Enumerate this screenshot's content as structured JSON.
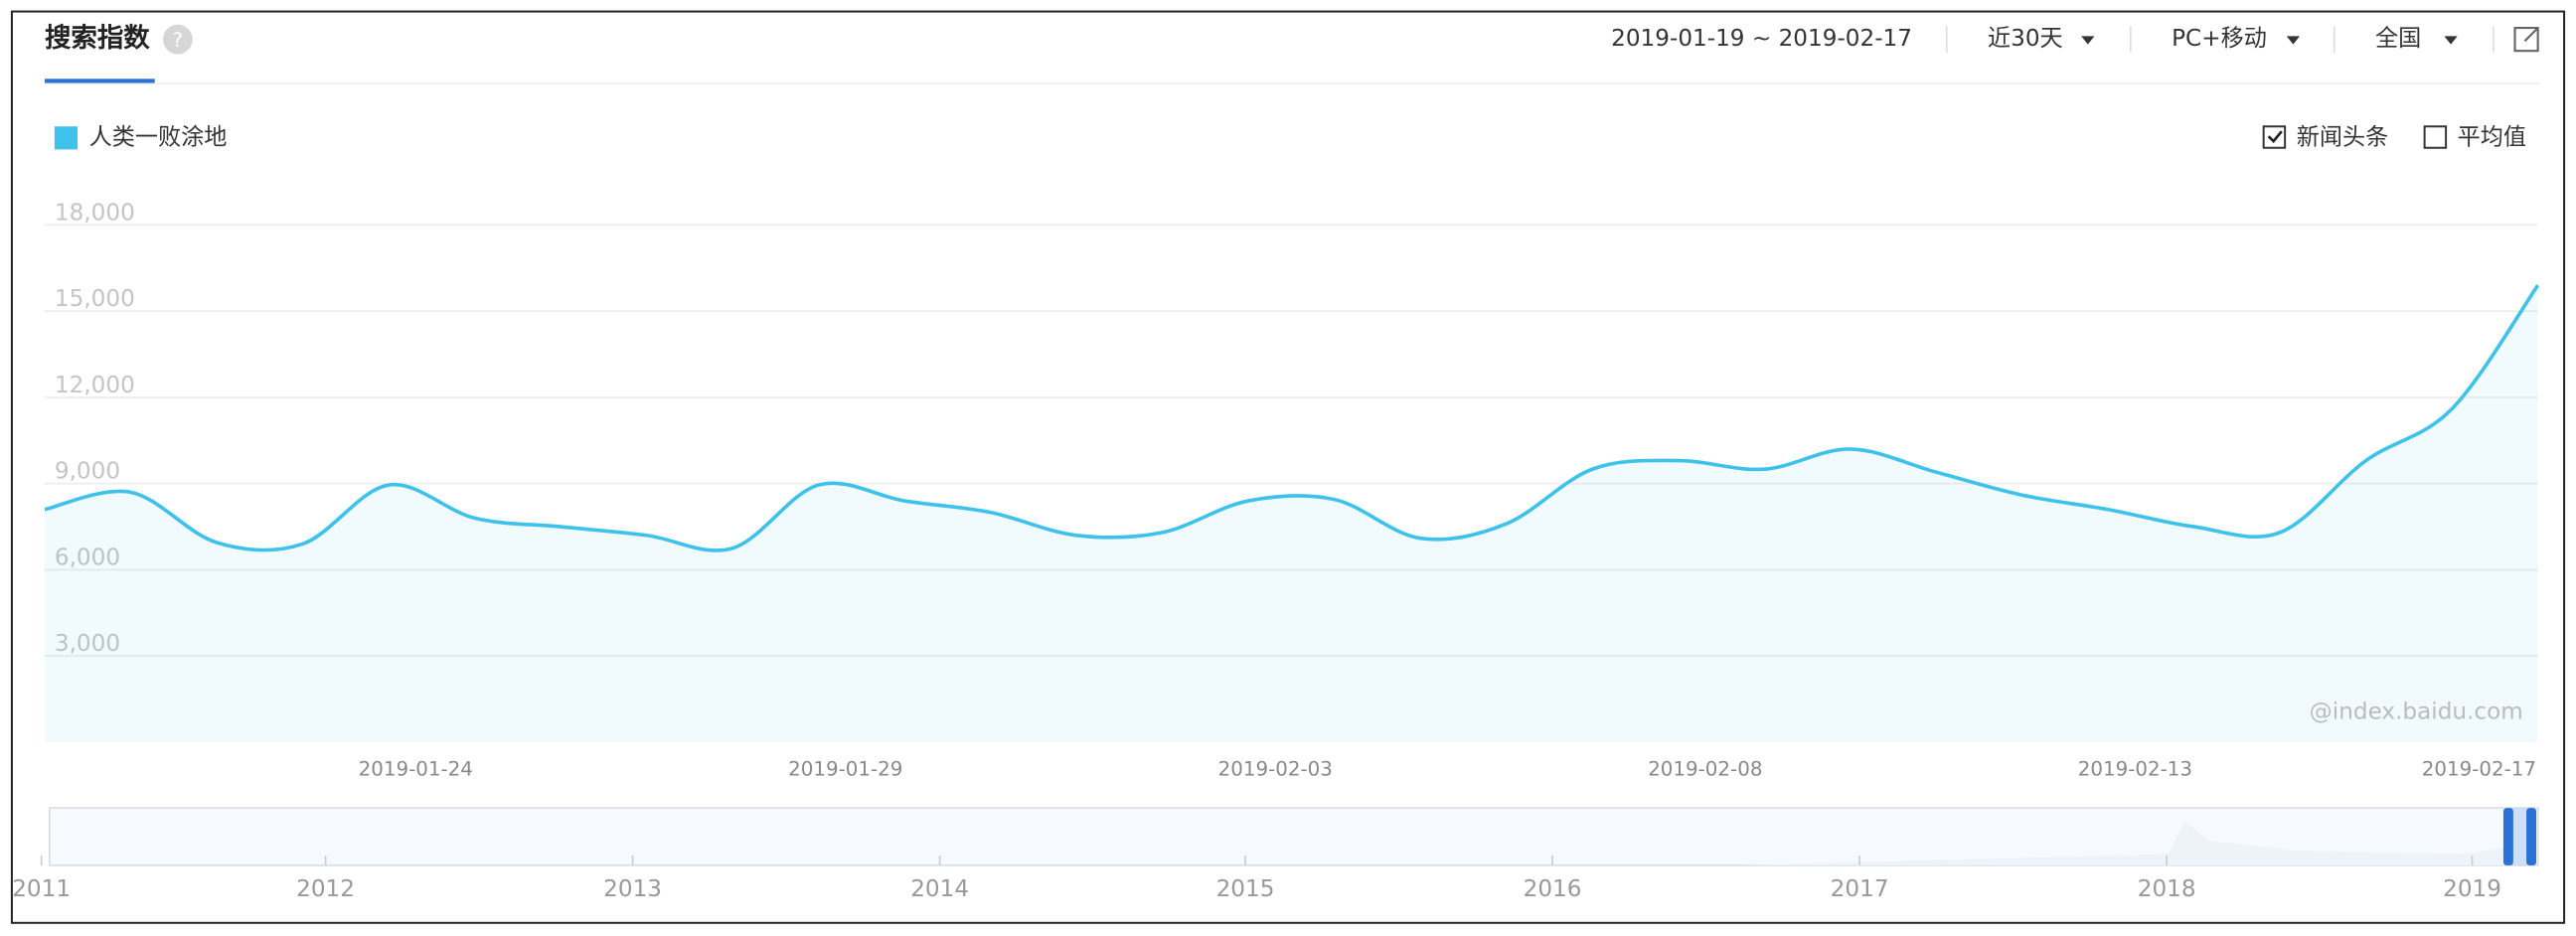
{
  "header": {
    "title": "搜索指数",
    "help": "?",
    "date_range": "2019-01-19 ~ 2019-02-17",
    "period": "近30天",
    "device": "PC+移动",
    "region": "全国"
  },
  "options": [
    {
      "label": "新闻头条",
      "checked": true
    },
    {
      "label": "平均值",
      "checked": false
    }
  ],
  "watermark": "@index.baidu.com",
  "navigator": {
    "years": [
      "2011",
      "2012",
      "2013",
      "2014",
      "2015",
      "2016",
      "2017",
      "2018",
      "2019"
    ]
  },
  "chart_data": {
    "type": "line",
    "categories": [
      null,
      null,
      null,
      null,
      null,
      "2019-01-24",
      null,
      null,
      null,
      null,
      "2019-01-29",
      null,
      null,
      null,
      null,
      "2019-02-03",
      null,
      null,
      null,
      null,
      "2019-02-08",
      null,
      null,
      null,
      null,
      "2019-02-13",
      null,
      null,
      null,
      "2019-02-17"
    ],
    "series": [
      {
        "name": "人类一败涂地",
        "color": "#3ec1ea",
        "values": [
          8100,
          8700,
          6950,
          6900,
          8950,
          7800,
          7500,
          7200,
          6750,
          8950,
          8400,
          8000,
          7200,
          7300,
          8400,
          8450,
          7100,
          7600,
          9500,
          9800,
          9500,
          10200,
          9400,
          8600,
          8100,
          7500,
          7300,
          9800,
          11600,
          15900
        ]
      }
    ],
    "ylim": [
      0,
      18000
    ],
    "yticks": [
      {
        "value": 3000,
        "label": "3,000"
      },
      {
        "value": 6000,
        "label": "6,000"
      },
      {
        "value": 9000,
        "label": "9,000"
      },
      {
        "value": 12000,
        "label": "12,000"
      },
      {
        "value": 15000,
        "label": "15,000"
      },
      {
        "value": 18000,
        "label": "18,000"
      }
    ],
    "grid": true
  }
}
